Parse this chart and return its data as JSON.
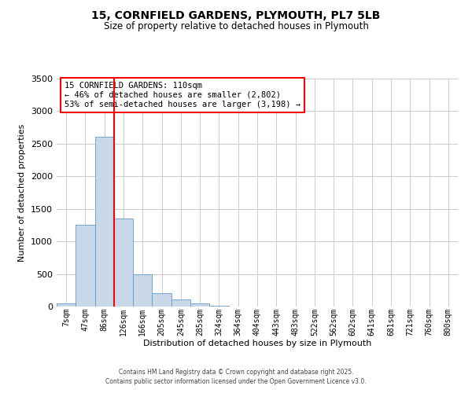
{
  "title": "15, CORNFIELD GARDENS, PLYMOUTH, PL7 5LB",
  "subtitle": "Size of property relative to detached houses in Plymouth",
  "xlabel": "Distribution of detached houses by size in Plymouth",
  "ylabel": "Number of detached properties",
  "bar_labels": [
    "7sqm",
    "47sqm",
    "86sqm",
    "126sqm",
    "166sqm",
    "205sqm",
    "245sqm",
    "285sqm",
    "324sqm",
    "364sqm",
    "404sqm",
    "443sqm",
    "483sqm",
    "522sqm",
    "562sqm",
    "602sqm",
    "641sqm",
    "681sqm",
    "721sqm",
    "760sqm",
    "800sqm"
  ],
  "bar_values": [
    50,
    1250,
    2610,
    1350,
    500,
    200,
    110,
    45,
    10,
    5,
    2,
    1,
    0,
    0,
    0,
    0,
    0,
    0,
    0,
    0,
    0
  ],
  "bar_color": "#c8d8e8",
  "bar_edge_color": "#6699cc",
  "grid_color": "#cccccc",
  "vline_x_index": 2.5,
  "vline_color": "red",
  "annotation_text": "15 CORNFIELD GARDENS: 110sqm\n← 46% of detached houses are smaller (2,802)\n53% of semi-detached houses are larger (3,198) →",
  "annotation_box_color": "white",
  "annotation_box_edge": "red",
  "ylim": [
    0,
    3500
  ],
  "yticks": [
    0,
    500,
    1000,
    1500,
    2000,
    2500,
    3000,
    3500
  ],
  "footer1": "Contains HM Land Registry data © Crown copyright and database right 2025.",
  "footer2": "Contains public sector information licensed under the Open Government Licence v3.0.",
  "bg_color": "white"
}
